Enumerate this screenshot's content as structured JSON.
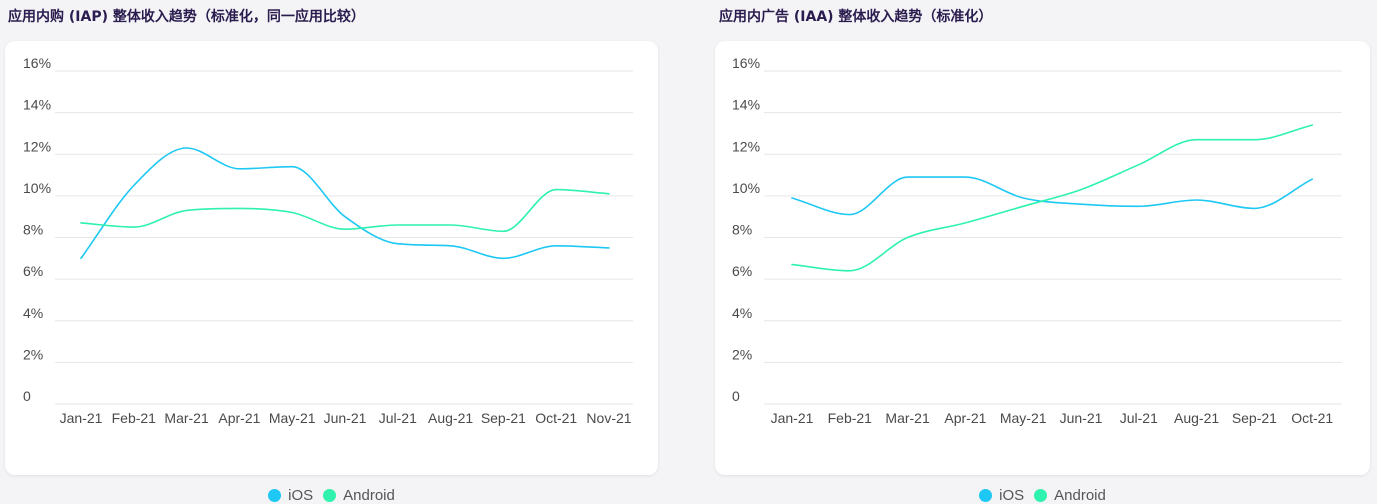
{
  "colors": {
    "ios": "#1ec8f4",
    "android": "#2ef2ad",
    "grid": "#e6e6e6"
  },
  "chart_data": [
    {
      "type": "line",
      "title": "应用内购 (IAP) 整体收入趋势（标准化，同一应用比较）",
      "xlabel": "",
      "ylabel": "",
      "ylim": [
        0,
        16
      ],
      "y_ticks": [
        "0",
        "2%",
        "4%",
        "6%",
        "8%",
        "10%",
        "12%",
        "14%",
        "16%"
      ],
      "categories": [
        "Jan-21",
        "Feb-21",
        "Mar-21",
        "Apr-21",
        "May-21",
        "Jun-21",
        "Jul-21",
        "Aug-21",
        "Sep-21",
        "Oct-21",
        "Nov-21"
      ],
      "series": [
        {
          "name": "iOS",
          "color_key": "ios",
          "values": [
            7.0,
            10.5,
            12.3,
            11.3,
            11.4,
            9.0,
            7.7,
            7.6,
            7.0,
            7.6,
            7.5
          ]
        },
        {
          "name": "Android",
          "color_key": "android",
          "values": [
            8.7,
            8.5,
            9.3,
            9.4,
            9.2,
            8.4,
            8.6,
            8.6,
            8.3,
            10.3,
            10.1
          ]
        }
      ],
      "legend": "bottom",
      "grid": true
    },
    {
      "type": "line",
      "title": "应用内广告 (IAA) 整体收入趋势（标准化）",
      "xlabel": "",
      "ylabel": "",
      "ylim": [
        0,
        16
      ],
      "y_ticks": [
        "0",
        "2%",
        "4%",
        "6%",
        "8%",
        "10%",
        "12%",
        "14%",
        "16%"
      ],
      "categories": [
        "Jan-21",
        "Feb-21",
        "Mar-21",
        "Apr-21",
        "May-21",
        "Jun-21",
        "Jul-21",
        "Aug-21",
        "Sep-21",
        "Oct-21"
      ],
      "series": [
        {
          "name": "iOS",
          "color_key": "ios",
          "values": [
            9.9,
            9.1,
            10.9,
            10.9,
            9.9,
            9.6,
            9.5,
            9.8,
            9.4,
            10.8
          ]
        },
        {
          "name": "Android",
          "color_key": "android",
          "values": [
            6.7,
            6.4,
            8.0,
            8.7,
            9.5,
            10.3,
            11.5,
            12.7,
            12.7,
            13.4
          ]
        }
      ],
      "legend": "bottom",
      "grid": true
    }
  ]
}
